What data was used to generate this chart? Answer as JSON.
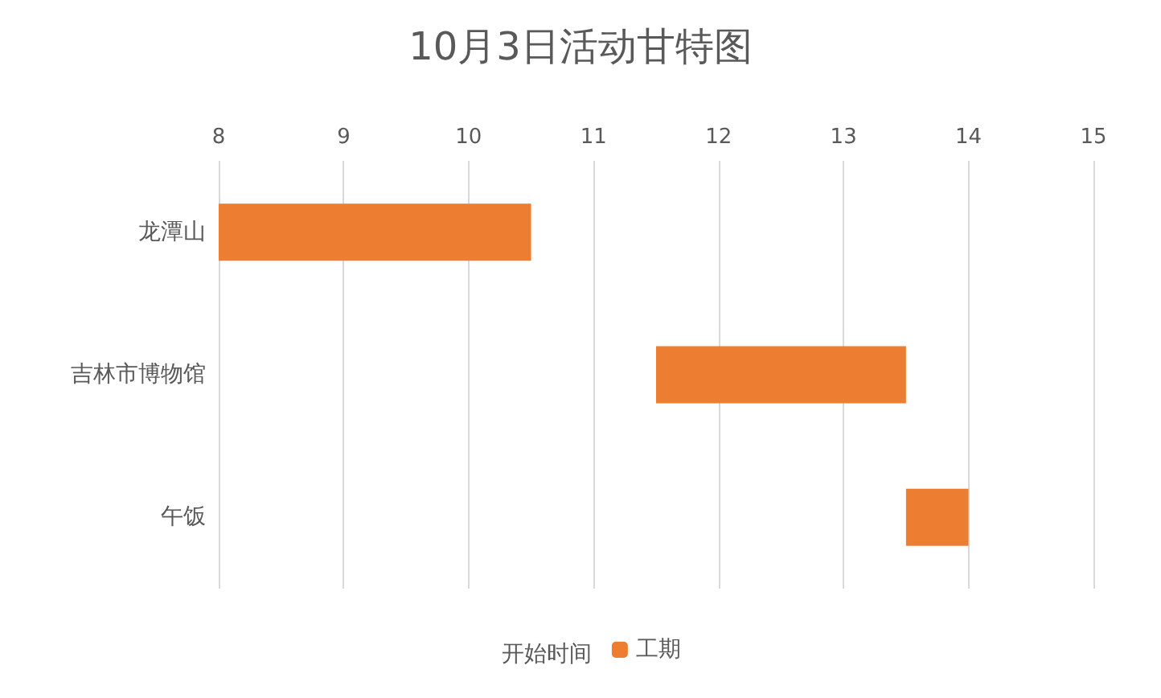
{
  "chart_data": {
    "type": "bar",
    "orientation": "horizontal",
    "title": "10月3日活动甘特图",
    "legend_title": "开始时间",
    "categories": [
      "龙潭山",
      "吉林市博物馆",
      "午饭"
    ],
    "series": [
      {
        "name": "工期",
        "color": "#ed7d31",
        "base": [
          8,
          11.5,
          13.5
        ],
        "values": [
          2.5,
          2,
          0.5
        ]
      }
    ],
    "xlim": [
      8,
      15
    ],
    "xticks": [
      8,
      9,
      10,
      11,
      12,
      13,
      14,
      15
    ],
    "grid": "x",
    "legend": "bottom"
  }
}
